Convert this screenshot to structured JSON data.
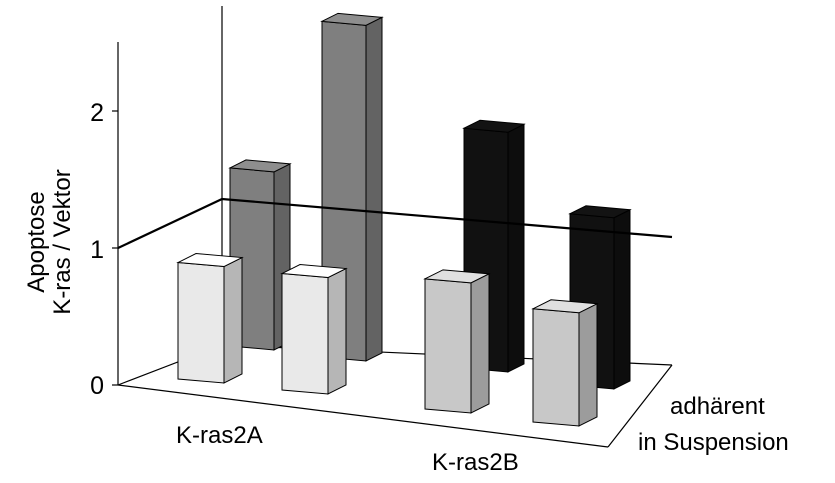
{
  "chart_data": {
    "type": "bar",
    "style": "3d-column",
    "ylabel_lines": [
      "Apoptose",
      "K-ras / Vektor"
    ],
    "categories": [
      "K-ras2A",
      "K-ras2B"
    ],
    "ylim": [
      0,
      2.5
    ],
    "yticks": [
      "0",
      "1",
      "2"
    ],
    "reference_line": 1,
    "series": [
      {
        "name": "adhärent",
        "values": [
          0.85,
          0.95
        ],
        "colors": [
          "#e9e9e9",
          "#c8c8c8"
        ]
      },
      {
        "name": "in Suspension",
        "values": [
          1.3,
          1.25
        ],
        "colors": [
          "#7f7f7f",
          "#111111"
        ]
      }
    ],
    "extra_back_bars": [
      2.45,
      1.75
    ],
    "extra_back_colors": [
      "#7f7f7f",
      "#111111"
    ]
  }
}
